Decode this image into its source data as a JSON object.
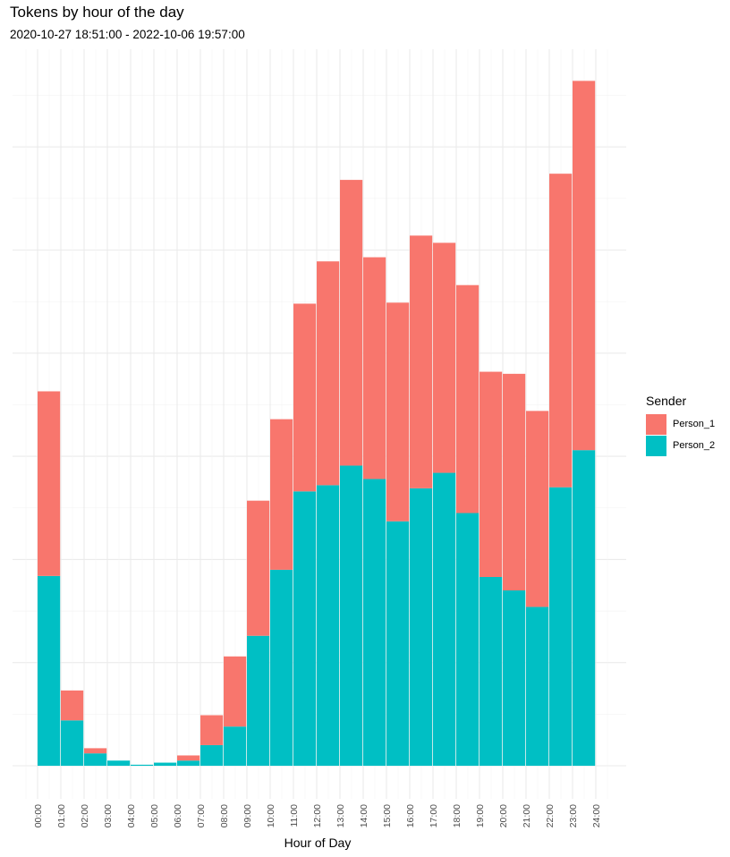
{
  "chart_data": {
    "type": "bar",
    "stacked": true,
    "title": "Tokens by hour of the day",
    "subtitle": "2020-10-27 18:51:00  -  2022-10-06 19:57:00",
    "xlabel": "Hour of Day",
    "ylabel": "",
    "ylim": [
      0,
      9.8
    ],
    "y_gridlines": [
      -0.5,
      0.5,
      1.5,
      2.5,
      3.5,
      4.5,
      5.5,
      6.5,
      7.5,
      8.5,
      9.5
    ],
    "categories": [
      "00:00",
      "01:00",
      "02:00",
      "03:00",
      "04:00",
      "05:00",
      "06:00",
      "07:00",
      "08:00",
      "09:00",
      "10:00",
      "11:00",
      "12:00",
      "13:00",
      "14:00",
      "15:00",
      "16:00",
      "17:00",
      "18:00",
      "19:00",
      "20:00",
      "21:00",
      "22:00",
      "23:00"
    ],
    "tick_labels": [
      "00:00",
      "01:00",
      "02:00",
      "03:00",
      "04:00",
      "05:00",
      "06:00",
      "07:00",
      "08:00",
      "09:00",
      "10:00",
      "11:00",
      "12:00",
      "13:00",
      "14:00",
      "15:00",
      "16:00",
      "17:00",
      "18:00",
      "19:00",
      "20:00",
      "21:00",
      "22:00",
      "23:00",
      "24:00"
    ],
    "legend_title": "Sender",
    "legend_position": "right",
    "series": [
      {
        "name": "Person_2",
        "color": "#00BFC4",
        "values": [
          1.84,
          0.44,
          0.12,
          0.05,
          0.01,
          0.03,
          0.05,
          0.2,
          0.38,
          1.26,
          1.9,
          2.66,
          2.72,
          2.91,
          2.78,
          2.37,
          2.69,
          2.84,
          2.45,
          1.83,
          1.7,
          1.54,
          2.7,
          3.06
        ]
      },
      {
        "name": "Person_1",
        "color": "#F8766D",
        "values": [
          1.79,
          0.29,
          0.05,
          0.0,
          0.0,
          0.0,
          0.05,
          0.29,
          0.68,
          1.31,
          1.46,
          1.82,
          2.17,
          2.77,
          2.15,
          2.12,
          2.45,
          2.23,
          2.21,
          1.99,
          2.1,
          1.9,
          3.04,
          3.58
        ]
      }
    ]
  }
}
